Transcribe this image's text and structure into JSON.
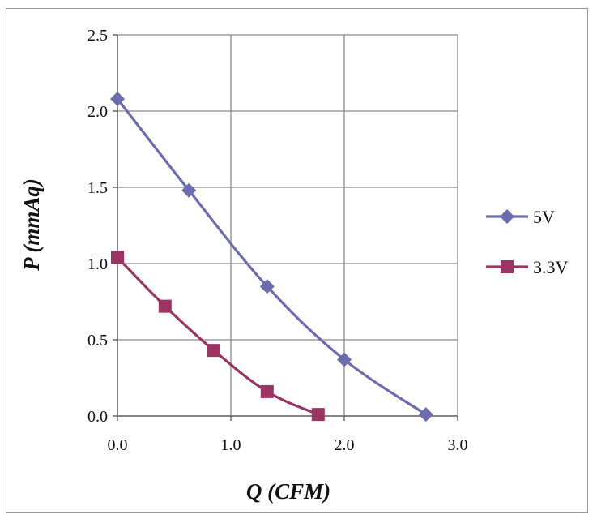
{
  "chart_data": {
    "type": "line",
    "xlabel": "Q (CFM)",
    "ylabel": "P (mmAq)",
    "xlim": [
      0,
      3
    ],
    "ylim": [
      0,
      2.5
    ],
    "xticks": [
      "0.0",
      "1.0",
      "2.0",
      "3.0"
    ],
    "yticks": [
      "0.0",
      "0.5",
      "1.0",
      "1.5",
      "2.0",
      "2.5"
    ],
    "grid": true,
    "legend_position": "right",
    "series": [
      {
        "name": "5V",
        "color": "#6b6bb0",
        "marker": "diamond",
        "x": [
          0.0,
          0.63,
          1.32,
          2.0,
          2.72
        ],
        "y": [
          2.08,
          1.48,
          0.85,
          0.37,
          0.01
        ]
      },
      {
        "name": "3.3V",
        "color": "#9c3463",
        "marker": "square",
        "x": [
          0.0,
          0.42,
          0.85,
          1.32,
          1.77
        ],
        "y": [
          1.04,
          0.72,
          0.43,
          0.16,
          0.01
        ]
      }
    ]
  }
}
